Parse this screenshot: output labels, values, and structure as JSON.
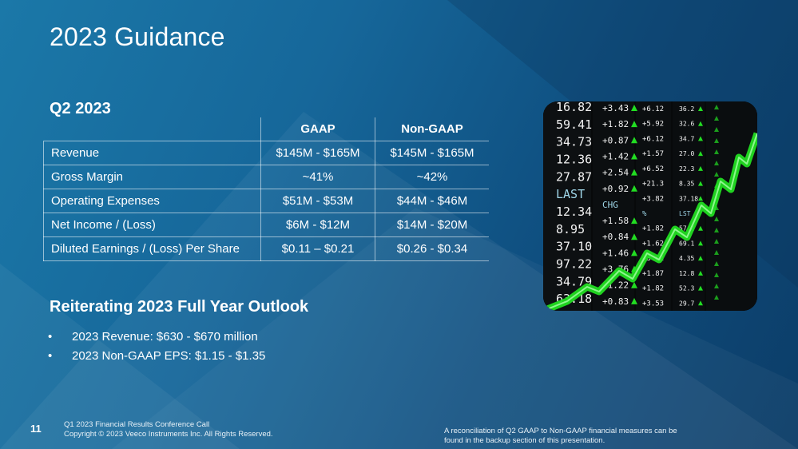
{
  "slide": {
    "title": "2023 Guidance",
    "page_number": "11"
  },
  "quarter": {
    "heading": "Q2 2023",
    "columns": [
      "GAAP",
      "Non-GAAP"
    ],
    "rows": [
      {
        "label": "Revenue",
        "gaap": "$145M - $165M",
        "non_gaap": "$145M - $165M"
      },
      {
        "label": "Gross Margin",
        "gaap": "~41%",
        "non_gaap": "~42%"
      },
      {
        "label": "Operating Expenses",
        "gaap": "$51M - $53M",
        "non_gaap": "$44M - $46M"
      },
      {
        "label": "Net Income / (Loss)",
        "gaap": "$6M - $12M",
        "non_gaap": "$14M - $20M"
      },
      {
        "label": "Diluted Earnings / (Loss) Per Share",
        "gaap": "$0.11 – $0.21",
        "non_gaap": "$0.26 - $0.34"
      }
    ]
  },
  "outlook": {
    "heading": "Reiterating 2023 Full Year Outlook",
    "bullet_symbol": "•",
    "items": [
      "2023 Revenue:  $630 - $670 million",
      "2023 Non-GAAP EPS:  $1.15 - $1.35"
    ]
  },
  "footer": {
    "left_line1": "Q1 2023 Financial Results Conference Call",
    "left_line2": "Copyright © 2023 Veeco Instruments Inc. All Rights Reserved.",
    "right_line1": "A reconciliation of Q2 GAAP to Non-GAAP financial measures can be",
    "right_line2": "found in the backup section of this presentation."
  },
  "stock_image": {
    "icon": "stock-ticker-chart-photo",
    "col1": [
      "16.82",
      "59.41",
      "34.73",
      "12.36",
      "27.87",
      "LAST",
      "12.34",
      "8.95",
      "37.10",
      "97.22",
      "34.79",
      "63.18"
    ],
    "col2": [
      "+3.43",
      "+1.82",
      "+0.87",
      "+1.42",
      "+2.54",
      "+0.92",
      "CHG",
      "+1.58",
      "+0.84",
      "+1.46",
      "+3.76",
      "+1.22",
      "+0.83"
    ],
    "col3": [
      "+6.12",
      "+5.92",
      "+6.12",
      "+1.57",
      "+6.52",
      "+21.3",
      "+3.82",
      "%",
      "+1.82",
      "+1.62",
      "+3.82",
      "+1.87",
      "+1.82",
      "+3.53"
    ],
    "col4": [
      "36.2",
      "32.6",
      "34.7",
      "27.0",
      "22.3",
      "8.35",
      "37.18",
      "LST",
      "57.2",
      "69.1",
      "4.35",
      "12.8",
      "52.3",
      "29.7"
    ],
    "colors": {
      "green": "#22dd22",
      "white": "#f2f2f2",
      "cyan": "#9fd6e8"
    }
  },
  "colors": {
    "background_start": "#1b78a8",
    "background_end": "#0c3d68",
    "table_border": "#ffffff"
  }
}
